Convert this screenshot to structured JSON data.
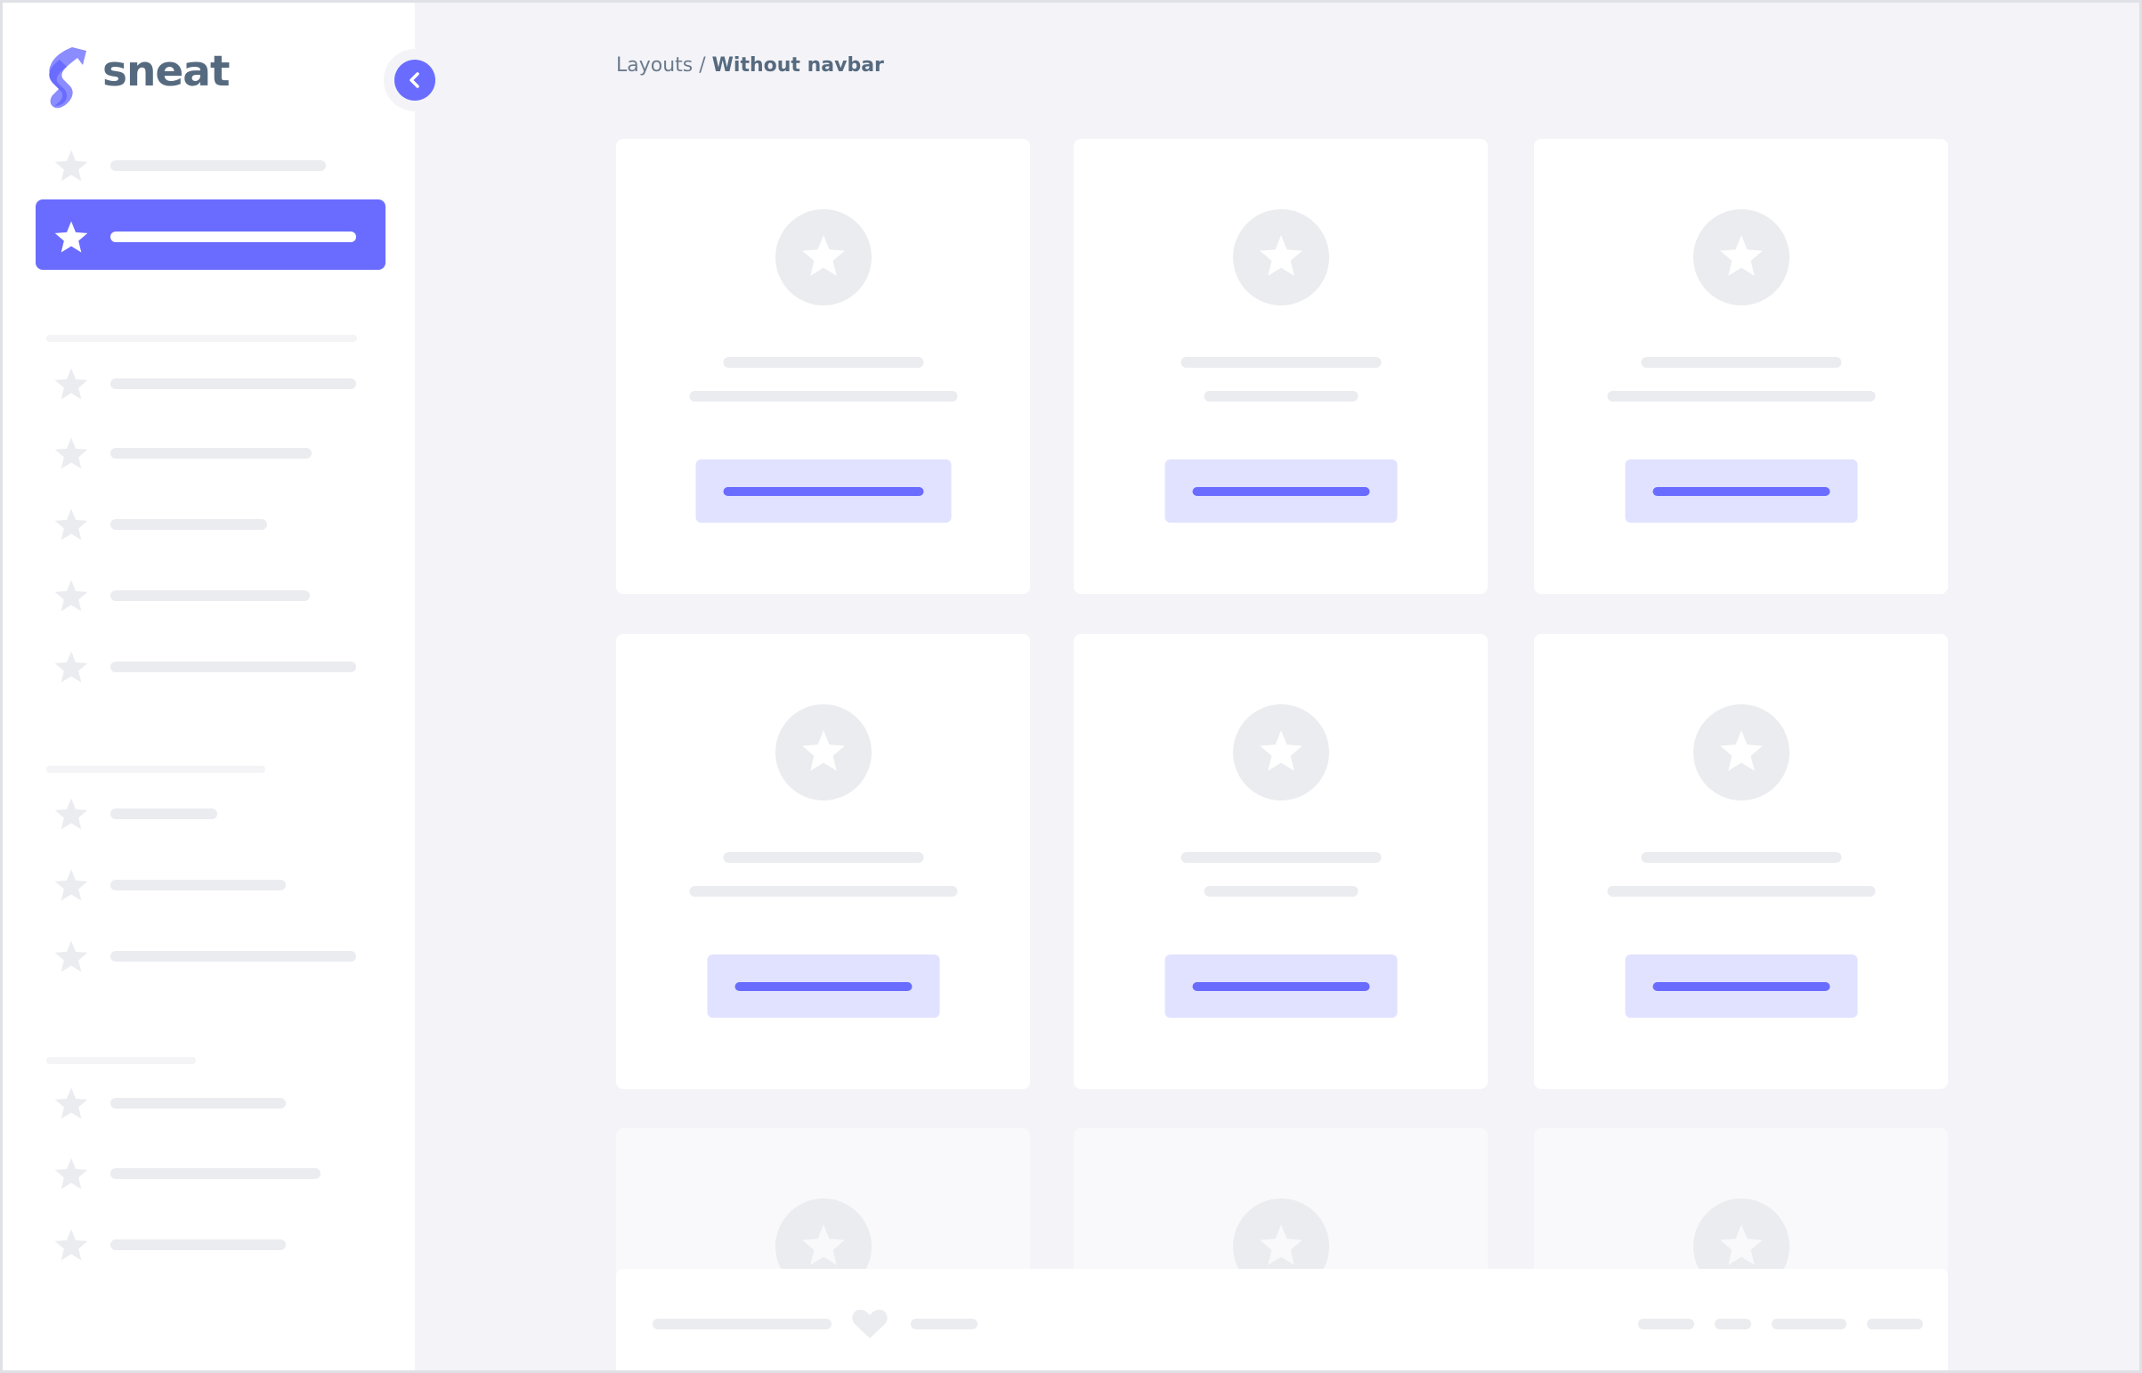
{
  "brand": {
    "name": "sneat",
    "accent_color": "#696cff",
    "logo_icon": "sneat-s-logo"
  },
  "sidebar": {
    "toggle_icon": "chevron-left-icon",
    "active_index": 1
  },
  "breadcrumb": {
    "parent": "Layouts",
    "separator": " / ",
    "current": "Without navbar"
  },
  "colors": {
    "background": "#f4f4f8",
    "placeholder": "#ebecf0",
    "button_light": "#e1e2ff"
  },
  "footer": {
    "icon": "heart-icon"
  }
}
